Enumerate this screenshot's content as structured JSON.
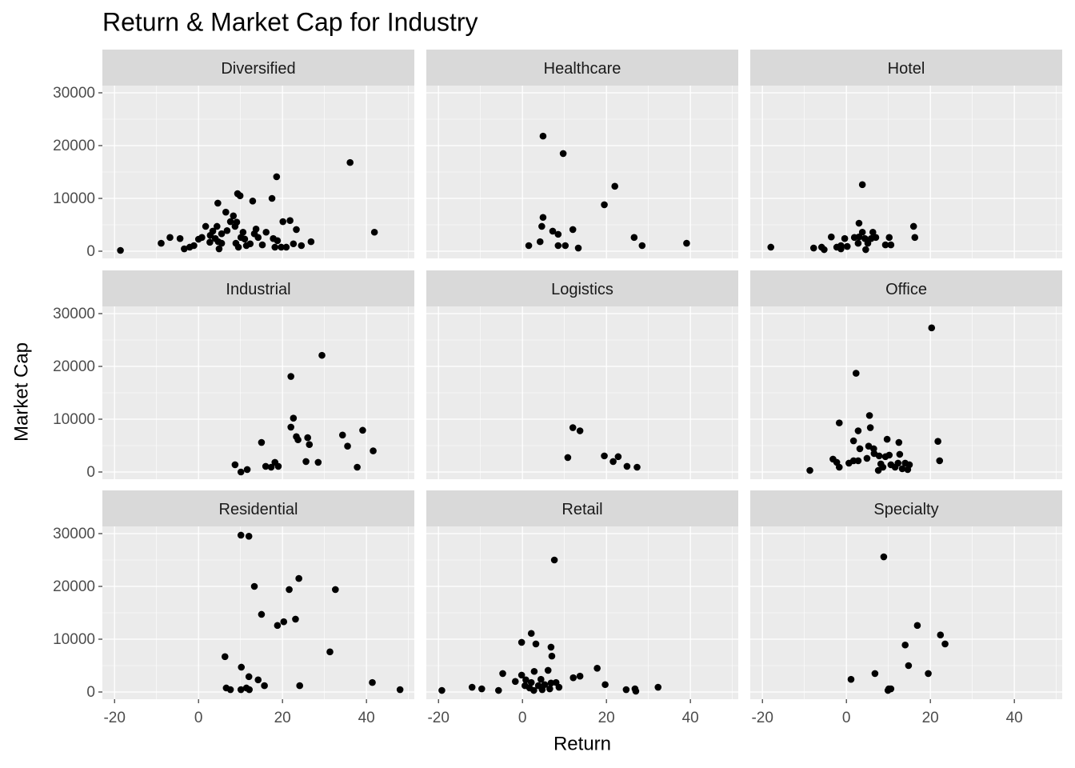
{
  "chart_data": {
    "type": "scatter",
    "title": "Return & Market Cap for Industry",
    "x_label": "Return",
    "y_label": "Market Cap",
    "xlim": [
      -22.9,
      51.4
    ],
    "ylim": [
      -1364,
      31364
    ],
    "xticks": [
      -20,
      0,
      20,
      40
    ],
    "yticks": [
      0,
      10000,
      20000,
      30000
    ],
    "xticks_minor": [
      -10,
      10,
      30,
      50
    ],
    "yticks_minor": [
      5000,
      15000,
      25000
    ],
    "grid": true,
    "color": "#000000",
    "facets": [
      {
        "title": "Diversified",
        "x": [
          -18.6,
          -8.9,
          -6.8,
          -4.4,
          -3.4,
          -2.1,
          -1.1,
          0,
          0.8,
          1.7,
          2.7,
          3.4,
          2.8,
          4,
          4.4,
          4.6,
          4.7,
          4.9,
          5.5,
          5.5,
          6.5,
          6.8,
          7.6,
          8.3,
          8.7,
          9.1,
          9.3,
          9.9,
          8.9,
          9.5,
          10.1,
          10.6,
          11,
          11.4,
          12.3,
          12.9,
          13.3,
          13.7,
          14.2,
          15.2,
          16.1,
          17.5,
          17.8,
          18.2,
          18.6,
          18.8,
          19.7,
          20.1,
          20.9,
          21.8,
          22.6,
          23.3,
          24.5,
          26.8,
          36.1,
          41.9
        ],
        "y": [
          150,
          1500,
          2600,
          2400,
          450,
          760,
          1060,
          2270,
          2600,
          4700,
          1700,
          3800,
          3000,
          2400,
          4700,
          9100,
          1800,
          450,
          3300,
          1500,
          7400,
          3900,
          5600,
          6700,
          4700,
          5500,
          10900,
          10500,
          1500,
          760,
          2600,
          3600,
          2300,
          1060,
          1400,
          9500,
          3300,
          4200,
          2600,
          1200,
          3600,
          10000,
          2400,
          760,
          14100,
          2000,
          760,
          5600,
          760,
          5800,
          1400,
          4100,
          1060,
          1800,
          16800,
          3600
        ]
      },
      {
        "title": "Healthcare",
        "x": [
          4.9,
          9.7,
          22,
          19.5,
          4.9,
          4.6,
          7.2,
          8.5,
          12,
          1.5,
          4.2,
          8.5,
          10.2,
          13.3,
          26.6,
          28.5,
          39.1
        ],
        "y": [
          21800,
          18500,
          12300,
          8800,
          6400,
          4700,
          3800,
          3200,
          4100,
          1060,
          1800,
          1060,
          1060,
          600,
          2600,
          1060,
          1500
        ]
      },
      {
        "title": "Hotel",
        "x": [
          -18,
          -7.8,
          -5.9,
          -5.3,
          -3.6,
          -2.3,
          -1.3,
          -0.4,
          -1.3,
          0.2,
          1.9,
          3,
          3,
          3.8,
          3.8,
          2.8,
          4.4,
          5.1,
          4.6,
          6.3,
          5.9,
          7,
          9.3,
          10.2,
          10.6,
          16,
          16.3
        ],
        "y": [
          760,
          600,
          760,
          300,
          2700,
          760,
          1060,
          2400,
          450,
          900,
          2600,
          5300,
          2700,
          12600,
          3600,
          1500,
          2400,
          1500,
          300,
          3600,
          2400,
          2600,
          1200,
          2600,
          1200,
          4700,
          2600
        ]
      },
      {
        "title": "Industrial",
        "x": [
          29.4,
          22,
          22.6,
          22,
          23.3,
          23.7,
          26,
          26.4,
          34.3,
          35.5,
          39.1,
          41.6,
          15,
          8.7,
          10.1,
          11.6,
          16,
          17.3,
          18.2,
          19,
          25.6,
          28.5,
          37.8
        ],
        "y": [
          22100,
          18100,
          10200,
          8500,
          6700,
          6100,
          6500,
          5200,
          7000,
          4900,
          7900,
          4000,
          5600,
          1370,
          0,
          460,
          1070,
          910,
          1830,
          1070,
          1980,
          1830,
          910
        ]
      },
      {
        "title": "Logistics",
        "x": [
          12,
          13.7,
          10.8,
          19.5,
          21.6,
          22.8,
          24.9,
          27.3
        ],
        "y": [
          8400,
          7800,
          2740,
          3050,
          1980,
          2900,
          1070,
          910
        ]
      },
      {
        "title": "Office",
        "x": [
          20.3,
          2.3,
          -1.7,
          5.5,
          5.7,
          2.8,
          1.7,
          3.2,
          5.3,
          6.5,
          9.7,
          12.5,
          21.8,
          -3.2,
          -2.3,
          -1.7,
          -8.7,
          0.6,
          1.7,
          2.8,
          4.9,
          6.6,
          7.8,
          8.2,
          7.6,
          8.7,
          9.3,
          10.2,
          10.6,
          11.6,
          12.3,
          12.7,
          13.3,
          14,
          14.6,
          15,
          22.2
        ],
        "y": [
          27300,
          18700,
          9300,
          10700,
          8400,
          7800,
          5900,
          4400,
          4900,
          4400,
          6200,
          5600,
          5800,
          2440,
          1830,
          910,
          300,
          1680,
          2130,
          2130,
          2590,
          3500,
          3050,
          1520,
          300,
          910,
          2900,
          3200,
          1370,
          910,
          1680,
          3350,
          610,
          1680,
          460,
          1370,
          2130
        ]
      },
      {
        "title": "Residential",
        "x": [
          10.1,
          12,
          13.3,
          23.9,
          21.6,
          32.6,
          15,
          23.1,
          20.3,
          18.8,
          31.3,
          6.3,
          10.2,
          12,
          14.2,
          15.7,
          24.1,
          41.4,
          48,
          6.6,
          7.6,
          10.1,
          11.4,
          12.1
        ],
        "y": [
          29700,
          29500,
          20000,
          21500,
          19400,
          19400,
          14700,
          13800,
          13300,
          12600,
          7600,
          6700,
          4700,
          2900,
          2300,
          1200,
          1200,
          1800,
          450,
          760,
          450,
          450,
          760,
          450
        ]
      },
      {
        "title": "Retail",
        "x": [
          7.6,
          2.1,
          -0.2,
          3.2,
          6.8,
          7,
          17.8,
          6.1,
          2.8,
          -4.7,
          12.1,
          13.7,
          -0.2,
          -1.7,
          0.8,
          4.4,
          2.1,
          3.8,
          5.3,
          6.8,
          8,
          8.7,
          0.6,
          1.7,
          2.7,
          4.7,
          6.5,
          19.7,
          24.7,
          26.8,
          27,
          32.3,
          -19.2,
          -12,
          -9.7,
          -5.7
        ],
        "y": [
          25000,
          11100,
          9400,
          9100,
          8500,
          6800,
          4500,
          4100,
          3900,
          3500,
          2700,
          3000,
          3200,
          2000,
          2300,
          2400,
          1800,
          1200,
          1400,
          1700,
          1800,
          900,
          1200,
          760,
          300,
          450,
          600,
          1400,
          450,
          600,
          150,
          900,
          300,
          900,
          600,
          300
        ]
      },
      {
        "title": "Specialty",
        "x": [
          8.9,
          16.9,
          22.4,
          23.5,
          14,
          14.8,
          6.8,
          19.5,
          1.1,
          10.1,
          10.6,
          9.9
        ],
        "y": [
          25600,
          12600,
          10800,
          9100,
          8900,
          5000,
          3500,
          3500,
          2400,
          600,
          600,
          300
        ]
      }
    ]
  }
}
